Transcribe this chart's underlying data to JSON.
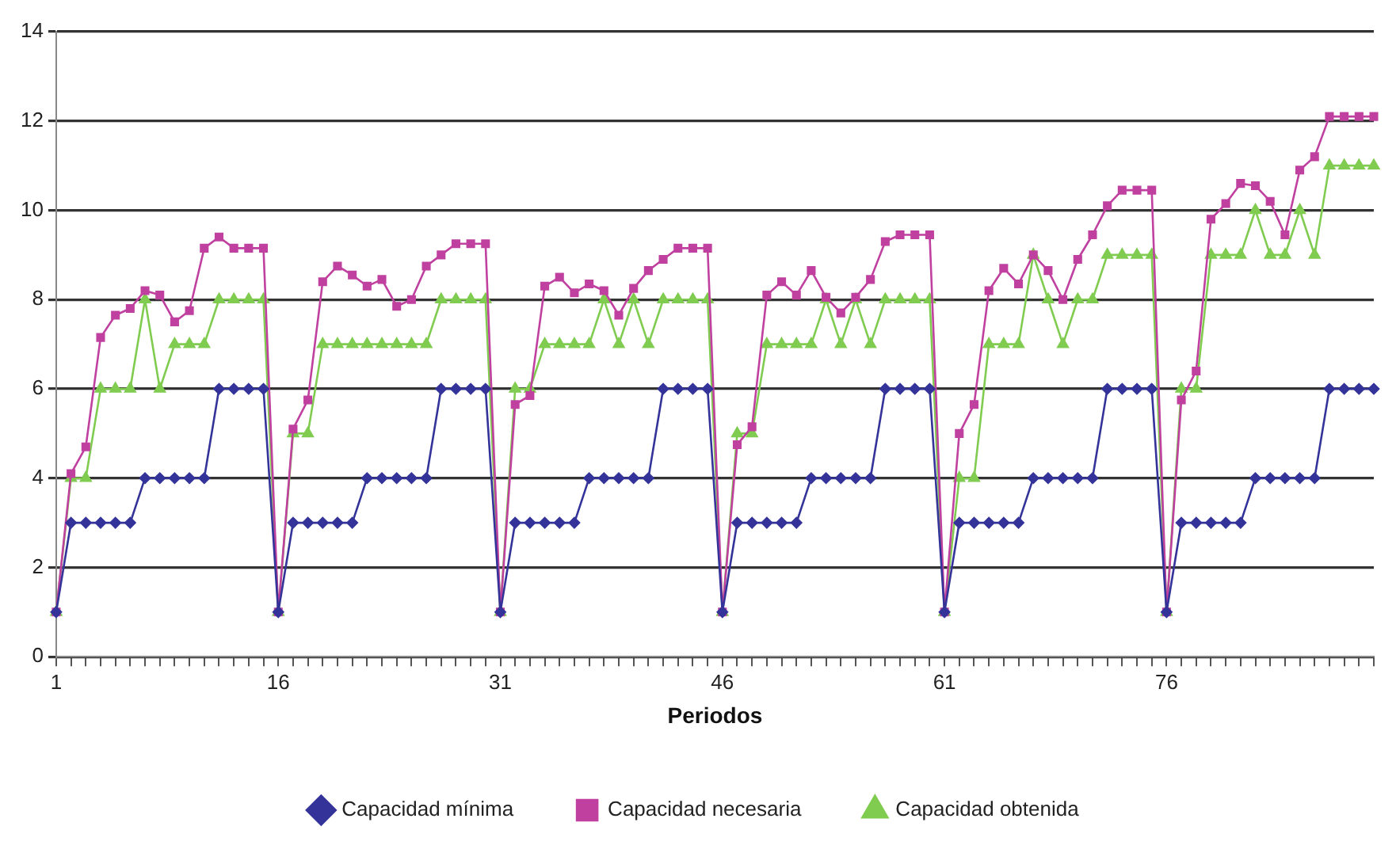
{
  "chart_data": {
    "type": "line",
    "xlabel": "Periodos",
    "categories": [
      "1",
      null,
      null,
      null,
      null,
      null,
      null,
      null,
      null,
      null,
      null,
      null,
      null,
      null,
      null,
      "16",
      null,
      null,
      null,
      null,
      null,
      null,
      null,
      null,
      null,
      null,
      null,
      null,
      null,
      null,
      "31",
      null,
      null,
      null,
      null,
      null,
      null,
      null,
      null,
      null,
      null,
      null,
      null,
      null,
      null,
      "46",
      null,
      null,
      null,
      null,
      null,
      null,
      null,
      null,
      null,
      null,
      null,
      null,
      null,
      null,
      "61",
      null,
      null,
      null,
      null,
      null,
      null,
      null,
      null,
      null,
      null,
      null,
      null,
      null,
      null,
      "76",
      null,
      null,
      null,
      null,
      null,
      null,
      null,
      null,
      null,
      null,
      null,
      null,
      null,
      null
    ],
    "series": [
      {
        "name": "Capacidad mínima",
        "color": "#333399",
        "marker": "diamond",
        "values": [
          1,
          3,
          3,
          3,
          3,
          3,
          4,
          4,
          4,
          4,
          4,
          6,
          6,
          6,
          6,
          1,
          3,
          3,
          3,
          3,
          3,
          4,
          4,
          4,
          4,
          4,
          6,
          6,
          6,
          6,
          1,
          3,
          3,
          3,
          3,
          3,
          4,
          4,
          4,
          4,
          4,
          6,
          6,
          6,
          6,
          1,
          3,
          3,
          3,
          3,
          3,
          4,
          4,
          4,
          4,
          4,
          6,
          6,
          6,
          6,
          1,
          3,
          3,
          3,
          3,
          3,
          4,
          4,
          4,
          4,
          4,
          6,
          6,
          6,
          6,
          1,
          3,
          3,
          3,
          3,
          3,
          4,
          4,
          4,
          4,
          4,
          6,
          6,
          6,
          6
        ]
      },
      {
        "name": "Capacidad necesaria",
        "color": "#c040a0",
        "marker": "square",
        "values": [
          1,
          4.1,
          4.7,
          7.15,
          7.65,
          7.8,
          8.2,
          8.1,
          7.5,
          7.75,
          9.15,
          9.4,
          9.15,
          9.15,
          9.15,
          1,
          5.1,
          5.75,
          8.4,
          8.75,
          8.55,
          8.3,
          8.45,
          7.85,
          8.0,
          8.75,
          9.0,
          9.25,
          9.25,
          9.25,
          1,
          5.65,
          5.85,
          8.3,
          8.5,
          8.15,
          8.35,
          8.2,
          7.65,
          8.25,
          8.65,
          8.9,
          9.15,
          9.15,
          9.15,
          1,
          4.75,
          5.15,
          8.1,
          8.4,
          8.1,
          8.65,
          8.05,
          7.7,
          8.05,
          8.45,
          9.3,
          9.45,
          9.45,
          9.45,
          1,
          5.0,
          5.65,
          8.2,
          8.7,
          8.35,
          9.0,
          8.65,
          8.0,
          8.9,
          9.45,
          10.1,
          10.45,
          10.45,
          10.45,
          1,
          5.75,
          6.4,
          9.8,
          10.15,
          10.6,
          10.55,
          10.2,
          9.45,
          10.9,
          11.2,
          12.1,
          12.1,
          12.1,
          12.1
        ]
      },
      {
        "name": "Capacidad obtenida",
        "color": "#80cc50",
        "marker": "triangle",
        "values": [
          1,
          4,
          4,
          6,
          6,
          6,
          8,
          6,
          7,
          7,
          7,
          8,
          8,
          8,
          8,
          1,
          5,
          5,
          7,
          7,
          7,
          7,
          7,
          7,
          7,
          7,
          8,
          8,
          8,
          8,
          1,
          6,
          6,
          7,
          7,
          7,
          7,
          8,
          7,
          8,
          7,
          8,
          8,
          8,
          8,
          1,
          5,
          5,
          7,
          7,
          7,
          7,
          8,
          7,
          8,
          7,
          8,
          8,
          8,
          8,
          1,
          4,
          4,
          7,
          7,
          7,
          9,
          8,
          7,
          8,
          8,
          9,
          9,
          9,
          9,
          1,
          6,
          6,
          9,
          9,
          9,
          10,
          9,
          9,
          10,
          9,
          11,
          11,
          11,
          11
        ]
      }
    ],
    "ylim": [
      0,
      14
    ],
    "yticks": [
      0,
      2,
      4,
      6,
      8,
      10,
      12,
      14
    ],
    "grid": "y",
    "legend": "bottom",
    "line_style": "solid"
  }
}
